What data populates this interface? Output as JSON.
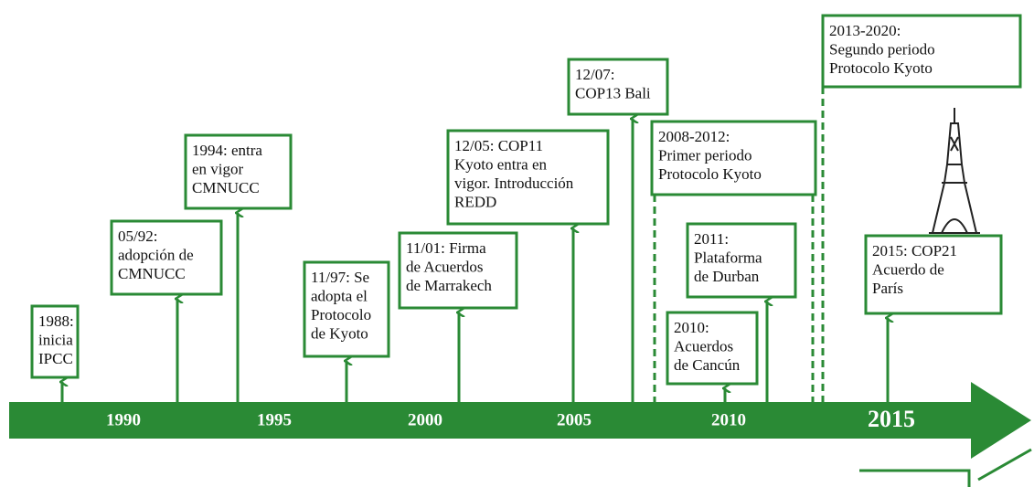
{
  "years": [
    "1990",
    "1995",
    "2000",
    "2005",
    "2010",
    "2015"
  ],
  "events": [
    {
      "lines": [
        "1988:",
        "inicia",
        "IPCC"
      ]
    },
    {
      "lines": [
        "05/92:",
        "adopción de",
        "CMNUCC"
      ]
    },
    {
      "lines": [
        "1994: entra",
        "en vigor",
        "CMNUCC"
      ]
    },
    {
      "lines": [
        "11/97: Se",
        "adopta el",
        "Protocolo",
        "de Kyoto"
      ]
    },
    {
      "lines": [
        "11/01: Firma",
        "de Acuerdos",
        "de Marrakech"
      ]
    },
    {
      "lines": [
        "12/05: COP11",
        "Kyoto entra en",
        "vigor. Introducción",
        "REDD"
      ]
    },
    {
      "lines": [
        "12/07:",
        "COP13 Bali"
      ]
    },
    {
      "lines": [
        "2008-2012:",
        "Primer periodo",
        "Protocolo Kyoto"
      ]
    },
    {
      "lines": [
        "2011:",
        "Plataforma",
        "de Durban"
      ]
    },
    {
      "lines": [
        "2010:",
        "Acuerdos",
        "de Cancún"
      ]
    },
    {
      "lines": [
        "2013-2020:",
        "Segundo periodo",
        "Protocolo Kyoto"
      ]
    },
    {
      "lines": [
        "2015: COP21",
        "Acuerdo de",
        "París"
      ]
    }
  ]
}
